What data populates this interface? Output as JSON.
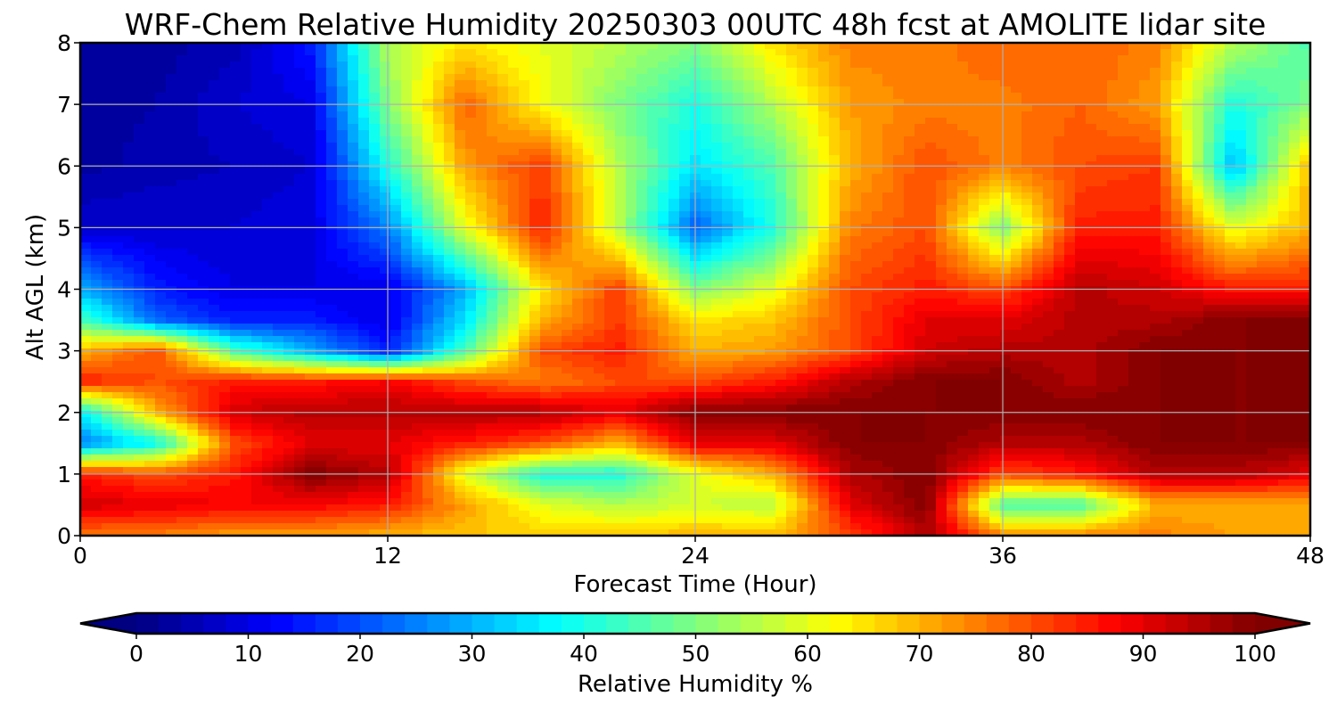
{
  "chart_data": {
    "type": "heatmap",
    "subtype": "filled-contour",
    "title": "WRF-Chem Relative Humidity 20250303 00UTC 48h fcst at AMOLITE lidar site",
    "xlabel": "Forecast Time (Hour)",
    "ylabel": "Alt AGL (km)",
    "xlim": [
      0,
      48
    ],
    "ylim": [
      0,
      8
    ],
    "xticks": [
      "0",
      "12",
      "24",
      "36",
      "48"
    ],
    "yticks": [
      "0",
      "1",
      "2",
      "3",
      "4",
      "5",
      "6",
      "7",
      "8"
    ],
    "grid": true,
    "colormap": "jet",
    "colorbar": {
      "label": "Relative Humidity %",
      "ticks": [
        "0",
        "10",
        "20",
        "30",
        "40",
        "50",
        "60",
        "70",
        "80",
        "90",
        "100"
      ],
      "range": [
        0,
        100
      ],
      "extend": "both",
      "orientation": "horizontal"
    },
    "x": [
      0,
      3,
      6,
      9,
      12,
      15,
      18,
      21,
      24,
      27,
      30,
      33,
      36,
      39,
      42,
      45,
      48
    ],
    "y": [
      0,
      0.5,
      1,
      1.5,
      2,
      2.5,
      3,
      3.5,
      4,
      5,
      6,
      7,
      8
    ],
    "z": [
      [
        75,
        75,
        72,
        72,
        70,
        68,
        68,
        68,
        70,
        70,
        80,
        95,
        75,
        75,
        75,
        72,
        72
      ],
      [
        92,
        90,
        88,
        88,
        85,
        72,
        60,
        55,
        58,
        55,
        90,
        100,
        45,
        45,
        70,
        70,
        70
      ],
      [
        85,
        80,
        85,
        100,
        95,
        60,
        40,
        40,
        60,
        70,
        95,
        100,
        80,
        85,
        95,
        95,
        90
      ],
      [
        25,
        38,
        80,
        90,
        90,
        85,
        80,
        70,
        90,
        90,
        100,
        100,
        95,
        95,
        100,
        100,
        100
      ],
      [
        35,
        70,
        92,
        95,
        95,
        95,
        95,
        90,
        100,
        100,
        100,
        100,
        100,
        100,
        100,
        100,
        100
      ],
      [
        85,
        80,
        85,
        85,
        88,
        80,
        75,
        80,
        80,
        85,
        95,
        100,
        100,
        95,
        100,
        100,
        100
      ],
      [
        70,
        80,
        45,
        30,
        15,
        45,
        80,
        85,
        70,
        72,
        80,
        92,
        95,
        95,
        100,
        100,
        100
      ],
      [
        45,
        22,
        15,
        15,
        10,
        35,
        70,
        82,
        65,
        68,
        80,
        90,
        90,
        95,
        95,
        100,
        100
      ],
      [
        30,
        15,
        10,
        10,
        10,
        30,
        65,
        82,
        50,
        60,
        80,
        85,
        80,
        95,
        92,
        85,
        85
      ],
      [
        8,
        8,
        8,
        10,
        25,
        60,
        85,
        55,
        22,
        40,
        75,
        80,
        50,
        85,
        85,
        60,
        70
      ],
      [
        3,
        5,
        6,
        8,
        40,
        72,
        82,
        55,
        35,
        45,
        70,
        80,
        75,
        80,
        82,
        30,
        70
      ],
      [
        3,
        4,
        8,
        10,
        50,
        78,
        62,
        50,
        40,
        55,
        72,
        75,
        75,
        78,
        72,
        40,
        50
      ],
      [
        3,
        3,
        5,
        15,
        55,
        65,
        60,
        55,
        50,
        65,
        75,
        75,
        78,
        78,
        75,
        55,
        45
      ]
    ]
  }
}
